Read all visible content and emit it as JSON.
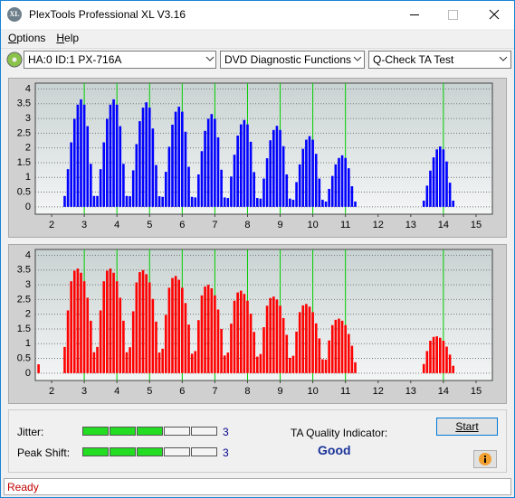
{
  "window": {
    "title": "PlexTools Professional XL V3.16"
  },
  "menu": [
    "Options",
    "Help"
  ],
  "toolbar": {
    "drive": "HA:0 ID:1  PX-716A",
    "function": "DVD Diagnostic Functions",
    "test": "Q-Check TA Test"
  },
  "chart_data": [
    {
      "type": "bar",
      "color": "#0000ff",
      "xlim": [
        1.5,
        15.5
      ],
      "ylim": [
        -0.25,
        4.2
      ],
      "xticks": [
        2,
        3,
        4,
        5,
        6,
        7,
        8,
        9,
        10,
        11,
        12,
        13,
        14,
        15
      ],
      "yticks": [
        0,
        0.5,
        1,
        1.5,
        2,
        2.5,
        3,
        3.5,
        4
      ],
      "grid": true,
      "markers": [
        3,
        4,
        5,
        6,
        7,
        8,
        9,
        10,
        11,
        14
      ],
      "marker_color": "#00cc00",
      "x": [
        2.4,
        2.5,
        2.6,
        2.7,
        2.8,
        2.9,
        3.0,
        3.1,
        3.2,
        3.3,
        3.4,
        3.5,
        3.6,
        3.7,
        3.8,
        3.9,
        4.0,
        4.1,
        4.2,
        4.3,
        4.4,
        4.5,
        4.6,
        4.7,
        4.8,
        4.9,
        5.0,
        5.1,
        5.2,
        5.3,
        5.4,
        5.5,
        5.6,
        5.7,
        5.8,
        5.9,
        6.0,
        6.1,
        6.2,
        6.3,
        6.4,
        6.5,
        6.6,
        6.7,
        6.8,
        6.9,
        7.0,
        7.1,
        7.2,
        7.3,
        7.4,
        7.5,
        7.6,
        7.7,
        7.8,
        7.9,
        8.0,
        8.1,
        8.2,
        8.3,
        8.4,
        8.5,
        8.6,
        8.7,
        8.8,
        8.9,
        9.0,
        9.1,
        9.2,
        9.3,
        9.4,
        9.5,
        9.6,
        9.7,
        9.8,
        9.9,
        10.0,
        10.1,
        10.2,
        10.3,
        10.4,
        10.5,
        10.6,
        10.7,
        10.8,
        10.9,
        11.0,
        11.1,
        11.2,
        11.3,
        13.4,
        13.5,
        13.6,
        13.7,
        13.8,
        13.9,
        14.0,
        14.1,
        14.2,
        14.3
      ],
      "values": [
        0.37,
        1.28,
        2.19,
        2.99,
        3.47,
        3.65,
        3.47,
        2.74,
        1.46,
        0.37,
        0.37,
        1.28,
        2.19,
        2.99,
        3.47,
        3.65,
        3.47,
        2.74,
        1.46,
        0.37,
        0.36,
        1.24,
        2.13,
        2.91,
        3.37,
        3.55,
        3.37,
        2.66,
        1.42,
        0.36,
        0.34,
        1.19,
        2.04,
        2.79,
        3.23,
        3.4,
        3.23,
        2.55,
        1.36,
        0.34,
        0.32,
        1.1,
        1.89,
        2.58,
        2.99,
        3.15,
        2.99,
        2.36,
        1.26,
        0.32,
        0.3,
        1.03,
        1.77,
        2.42,
        2.8,
        2.95,
        2.8,
        2.21,
        1.18,
        0.3,
        0.28,
        0.96,
        1.65,
        2.26,
        2.61,
        2.75,
        2.61,
        2.06,
        1.1,
        0.28,
        0.24,
        0.84,
        1.44,
        1.97,
        2.28,
        2.4,
        2.28,
        1.8,
        0.96,
        0.24,
        0.18,
        0.61,
        1.05,
        1.44,
        1.66,
        1.75,
        1.66,
        1.31,
        0.7,
        0.18,
        0.21,
        0.72,
        1.23,
        1.68,
        1.95,
        2.05,
        1.95,
        1.54,
        0.82,
        0.21
      ]
    },
    {
      "type": "bar",
      "color": "#ff0000",
      "xlim": [
        1.5,
        15.5
      ],
      "ylim": [
        -0.25,
        4.2
      ],
      "xticks": [
        2,
        3,
        4,
        5,
        6,
        7,
        8,
        9,
        10,
        11,
        12,
        13,
        14,
        15
      ],
      "yticks": [
        0,
        0.5,
        1,
        1.5,
        2,
        2.5,
        3,
        3.5,
        4
      ],
      "grid": true,
      "markers": [
        3,
        4,
        5,
        6,
        7,
        8,
        9,
        10,
        11,
        14
      ],
      "marker_color": "#00cc00",
      "x": [
        1.6,
        2.4,
        2.5,
        2.6,
        2.7,
        2.8,
        2.9,
        3.0,
        3.1,
        3.2,
        3.3,
        3.4,
        3.5,
        3.6,
        3.7,
        3.8,
        3.9,
        4.0,
        4.1,
        4.2,
        4.3,
        4.4,
        4.5,
        4.6,
        4.7,
        4.8,
        4.9,
        5.0,
        5.1,
        5.2,
        5.3,
        5.4,
        5.5,
        5.6,
        5.7,
        5.8,
        5.9,
        6.0,
        6.1,
        6.2,
        6.3,
        6.4,
        6.5,
        6.6,
        6.7,
        6.8,
        6.9,
        7.0,
        7.1,
        7.2,
        7.3,
        7.4,
        7.5,
        7.6,
        7.7,
        7.8,
        7.9,
        8.0,
        8.1,
        8.2,
        8.3,
        8.4,
        8.5,
        8.6,
        8.7,
        8.8,
        8.9,
        9.0,
        9.1,
        9.2,
        9.3,
        9.4,
        9.5,
        9.6,
        9.7,
        9.8,
        9.9,
        10.0,
        10.1,
        10.2,
        10.3,
        10.4,
        10.5,
        10.6,
        10.7,
        10.8,
        10.9,
        11.0,
        11.1,
        11.2,
        11.3,
        13.4,
        13.5,
        13.6,
        13.7,
        13.8,
        13.9,
        14.0,
        14.1,
        14.2,
        14.3
      ],
      "values": [
        0.3,
        0.89,
        2.13,
        3.12,
        3.48,
        3.55,
        3.41,
        3.12,
        2.56,
        1.78,
        0.71,
        0.89,
        2.13,
        3.12,
        3.48,
        3.55,
        3.41,
        3.12,
        2.56,
        1.78,
        0.71,
        0.88,
        2.1,
        3.08,
        3.43,
        3.5,
        3.36,
        3.08,
        2.52,
        1.75,
        0.7,
        0.83,
        1.98,
        2.9,
        3.23,
        3.3,
        3.17,
        2.9,
        2.38,
        1.65,
        0.66,
        0.75,
        1.8,
        2.64,
        2.94,
        3.0,
        2.88,
        2.64,
        2.16,
        1.5,
        0.6,
        0.7,
        1.68,
        2.46,
        2.74,
        2.8,
        2.69,
        2.46,
        2.02,
        1.4,
        0.56,
        0.65,
        1.56,
        2.29,
        2.55,
        2.6,
        2.5,
        2.29,
        1.87,
        1.3,
        0.52,
        0.59,
        1.41,
        2.07,
        2.3,
        2.35,
        2.26,
        2.07,
        1.69,
        1.18,
        0.47,
        0.46,
        1.11,
        1.63,
        1.81,
        1.85,
        1.78,
        1.63,
        1.33,
        0.93,
        0.37,
        0.31,
        0.75,
        1.1,
        1.23,
        1.25,
        1.2,
        1.1,
        0.9,
        0.63,
        0.25
      ]
    }
  ],
  "results": {
    "jitter": {
      "label": "Jitter:",
      "value": 3,
      "segments": 5
    },
    "peak_shift": {
      "label": "Peak Shift:",
      "value": 3,
      "segments": 5
    },
    "quality_label": "TA Quality Indicator:",
    "quality": "Good",
    "button": "Start"
  },
  "status": "Ready"
}
